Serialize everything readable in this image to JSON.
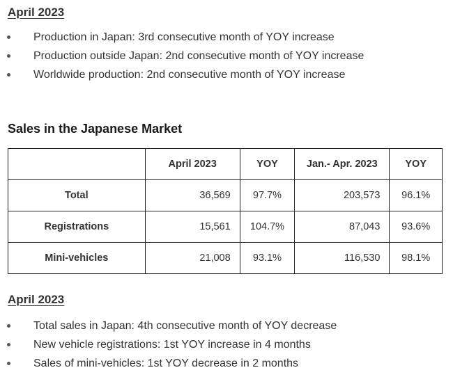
{
  "section1": {
    "heading": "April 2023",
    "bullets": [
      "Production in Japan: 3rd consecutive month of YOY increase",
      "Production outside Japan: 2nd consecutive month of YOY increase",
      "Worldwide production: 2nd consecutive month of YOY increase"
    ]
  },
  "sales": {
    "title": "Sales in the Japanese Market",
    "headers": [
      "",
      "April 2023",
      "YOY",
      "Jan.- Apr. 2023",
      "YOY"
    ],
    "rows": [
      {
        "label": "Total",
        "april": "36,569",
        "april_yoy": "97.7%",
        "jan_apr": "203,573",
        "jan_apr_yoy": "96.1%"
      },
      {
        "label": "Registrations",
        "april": "15,561",
        "april_yoy": "104.7%",
        "jan_apr": "87,043",
        "jan_apr_yoy": "93.6%"
      },
      {
        "label": "Mini-vehicles",
        "april": "21,008",
        "april_yoy": "93.1%",
        "jan_apr": "116,530",
        "jan_apr_yoy": "98.1%"
      }
    ]
  },
  "section2": {
    "heading": "April 2023",
    "bullets": [
      "Total sales in Japan: 4th consecutive month of YOY decrease",
      "New vehicle registrations: 1st YOY increase in 4 months",
      "Sales of mini-vehicles: 1st YOY decrease in 2 months"
    ]
  }
}
